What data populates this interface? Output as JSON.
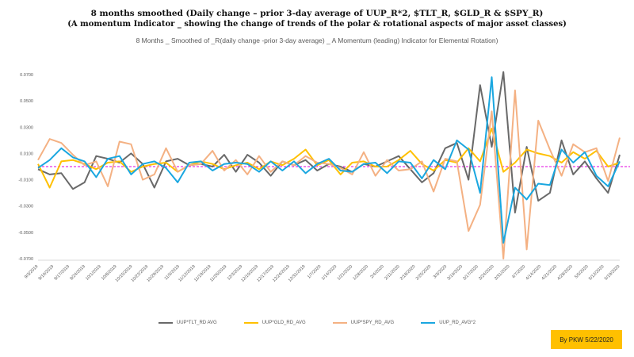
{
  "chart_data": {
    "type": "line",
    "title": "8 months   smoothed (Daily change – prior 3-day average of UUP_R*2, $TLT_R, $GLD_R & $SPY_R)",
    "title2": "(A momentum  Indicator _ showing the change of trends of the polar & rotational aspects of major asset classes)",
    "subtitle": "8 Months _ Smoothed of _R(daily change -prior 3-day average) _ A Momentum (leading) Indicator for Elemental Rotation)",
    "ylim": [
      -0.07,
      0.07
    ],
    "y_ticks": [
      "0.0700",
      "0.0500",
      "0.0300",
      "0.0100",
      "-0.0100",
      "-0.0300",
      "-0.0500",
      "-0.0700"
    ],
    "y_tick_values": [
      0.07,
      0.05,
      0.03,
      0.01,
      -0.01,
      -0.03,
      -0.05,
      -0.07
    ],
    "grid": false,
    "zero_line": "dashed magenta",
    "legend_position": "bottom",
    "x_labels": [
      "9/3/2019",
      "9/10/2019",
      "9/17/2019",
      "9/24/2019",
      "10/1/2019",
      "10/8/2019",
      "10/15/2019",
      "10/22/2019",
      "10/29/2019",
      "11/5/2019",
      "11/12/2019",
      "11/19/2019",
      "11/26/2019",
      "12/3/2019",
      "12/10/2019",
      "12/17/2019",
      "12/24/2019",
      "12/31/2019",
      "1/7/2020",
      "1/14/2020",
      "1/21/2020",
      "1/28/2020",
      "2/4/2020",
      "2/11/2020",
      "2/18/2020",
      "2/25/2020",
      "3/3/2020",
      "3/10/2020",
      "3/17/2020",
      "3/24/2020",
      "3/31/2020",
      "4/7/2020",
      "4/14/2020",
      "4/21/2020",
      "4/28/2020",
      "5/5/2020",
      "5/12/2020",
      "5/19/2020"
    ],
    "series": [
      {
        "name": "UUP*TLT_RD AVG",
        "color": "#696969",
        "values": [
          -0.002,
          -0.006,
          -0.005,
          -0.017,
          -0.012,
          0.008,
          0.006,
          0.003,
          0.01,
          0.002,
          -0.016,
          0.004,
          0.006,
          0.001,
          0.002,
          0.0,
          0.009,
          -0.004,
          0.009,
          0.003,
          -0.007,
          0.004,
          0.001,
          0.005,
          -0.003,
          0.002,
          0.0,
          -0.004,
          0.002,
          0.0,
          0.004,
          0.008,
          -0.002,
          -0.012,
          -0.005,
          0.014,
          0.018,
          -0.01,
          0.062,
          0.015,
          0.072,
          -0.035,
          0.015,
          -0.026,
          -0.02,
          0.02,
          -0.006,
          0.004,
          -0.009,
          -0.02,
          0.009
        ]
      },
      {
        "name": "UUP*GLD_RD_AVG",
        "color": "#ffc000",
        "values": [
          0.002,
          -0.016,
          0.004,
          0.005,
          0.002,
          -0.002,
          0.003,
          0.004,
          -0.004,
          0.0,
          0.002,
          0.003,
          -0.004,
          0.001,
          0.004,
          0.002,
          -0.002,
          0.001,
          0.003,
          -0.002,
          0.004,
          0.001,
          0.006,
          0.013,
          0.001,
          0.005,
          -0.006,
          0.003,
          0.004,
          0.0,
          0.0,
          0.005,
          0.012,
          0.002,
          -0.003,
          0.005,
          0.003,
          0.014,
          0.004,
          0.029,
          -0.004,
          0.003,
          0.013,
          0.01,
          0.008,
          0.003,
          0.011,
          0.006,
          0.012,
          0.0,
          0.003
        ]
      },
      {
        "name": "UUP*SPY_RD_AVG",
        "color": "#f4b183",
        "values": [
          0.005,
          0.021,
          0.018,
          0.009,
          0.001,
          0.004,
          -0.015,
          0.019,
          0.017,
          -0.01,
          -0.006,
          0.014,
          -0.004,
          0.001,
          0.002,
          0.012,
          -0.003,
          0.005,
          -0.006,
          0.008,
          -0.004,
          0.004,
          0.001,
          0.008,
          0.003,
          0.002,
          -0.001,
          -0.006,
          0.011,
          -0.007,
          0.005,
          -0.003,
          -0.002,
          0.004,
          -0.019,
          0.006,
          0.004,
          -0.049,
          -0.029,
          0.042,
          -0.07,
          0.058,
          -0.063,
          0.035,
          0.013,
          -0.007,
          0.017,
          0.011,
          0.014,
          -0.011,
          0.022
        ]
      },
      {
        "name": "UUP_RD_AVG*2",
        "color": "#1aa7e0",
        "values": [
          -0.001,
          0.005,
          0.014,
          0.007,
          0.004,
          -0.008,
          0.006,
          0.008,
          -0.006,
          0.002,
          0.004,
          -0.001,
          -0.012,
          0.003,
          0.004,
          -0.003,
          0.002,
          0.003,
          0.002,
          -0.004,
          0.004,
          -0.003,
          0.004,
          -0.005,
          0.002,
          0.006,
          -0.003,
          -0.004,
          0.002,
          0.003,
          -0.005,
          0.004,
          0.003,
          -0.009,
          0.005,
          -0.002,
          0.02,
          0.013,
          -0.02,
          0.068,
          -0.058,
          -0.016,
          -0.025,
          -0.013,
          -0.014,
          0.013,
          0.003,
          0.011,
          -0.007,
          -0.015,
          0.004
        ]
      }
    ]
  },
  "legend": [
    {
      "label": "UUP*TLT_RD AVG",
      "color": "#696969"
    },
    {
      "label": "UUP*GLD_RD_AVG",
      "color": "#ffc000"
    },
    {
      "label": "UUP*SPY_RD_AVG",
      "color": "#f4b183"
    },
    {
      "label": "UUP_RD_AVG*2",
      "color": "#1aa7e0"
    }
  ],
  "credit": "By PKW 5/22/2020"
}
